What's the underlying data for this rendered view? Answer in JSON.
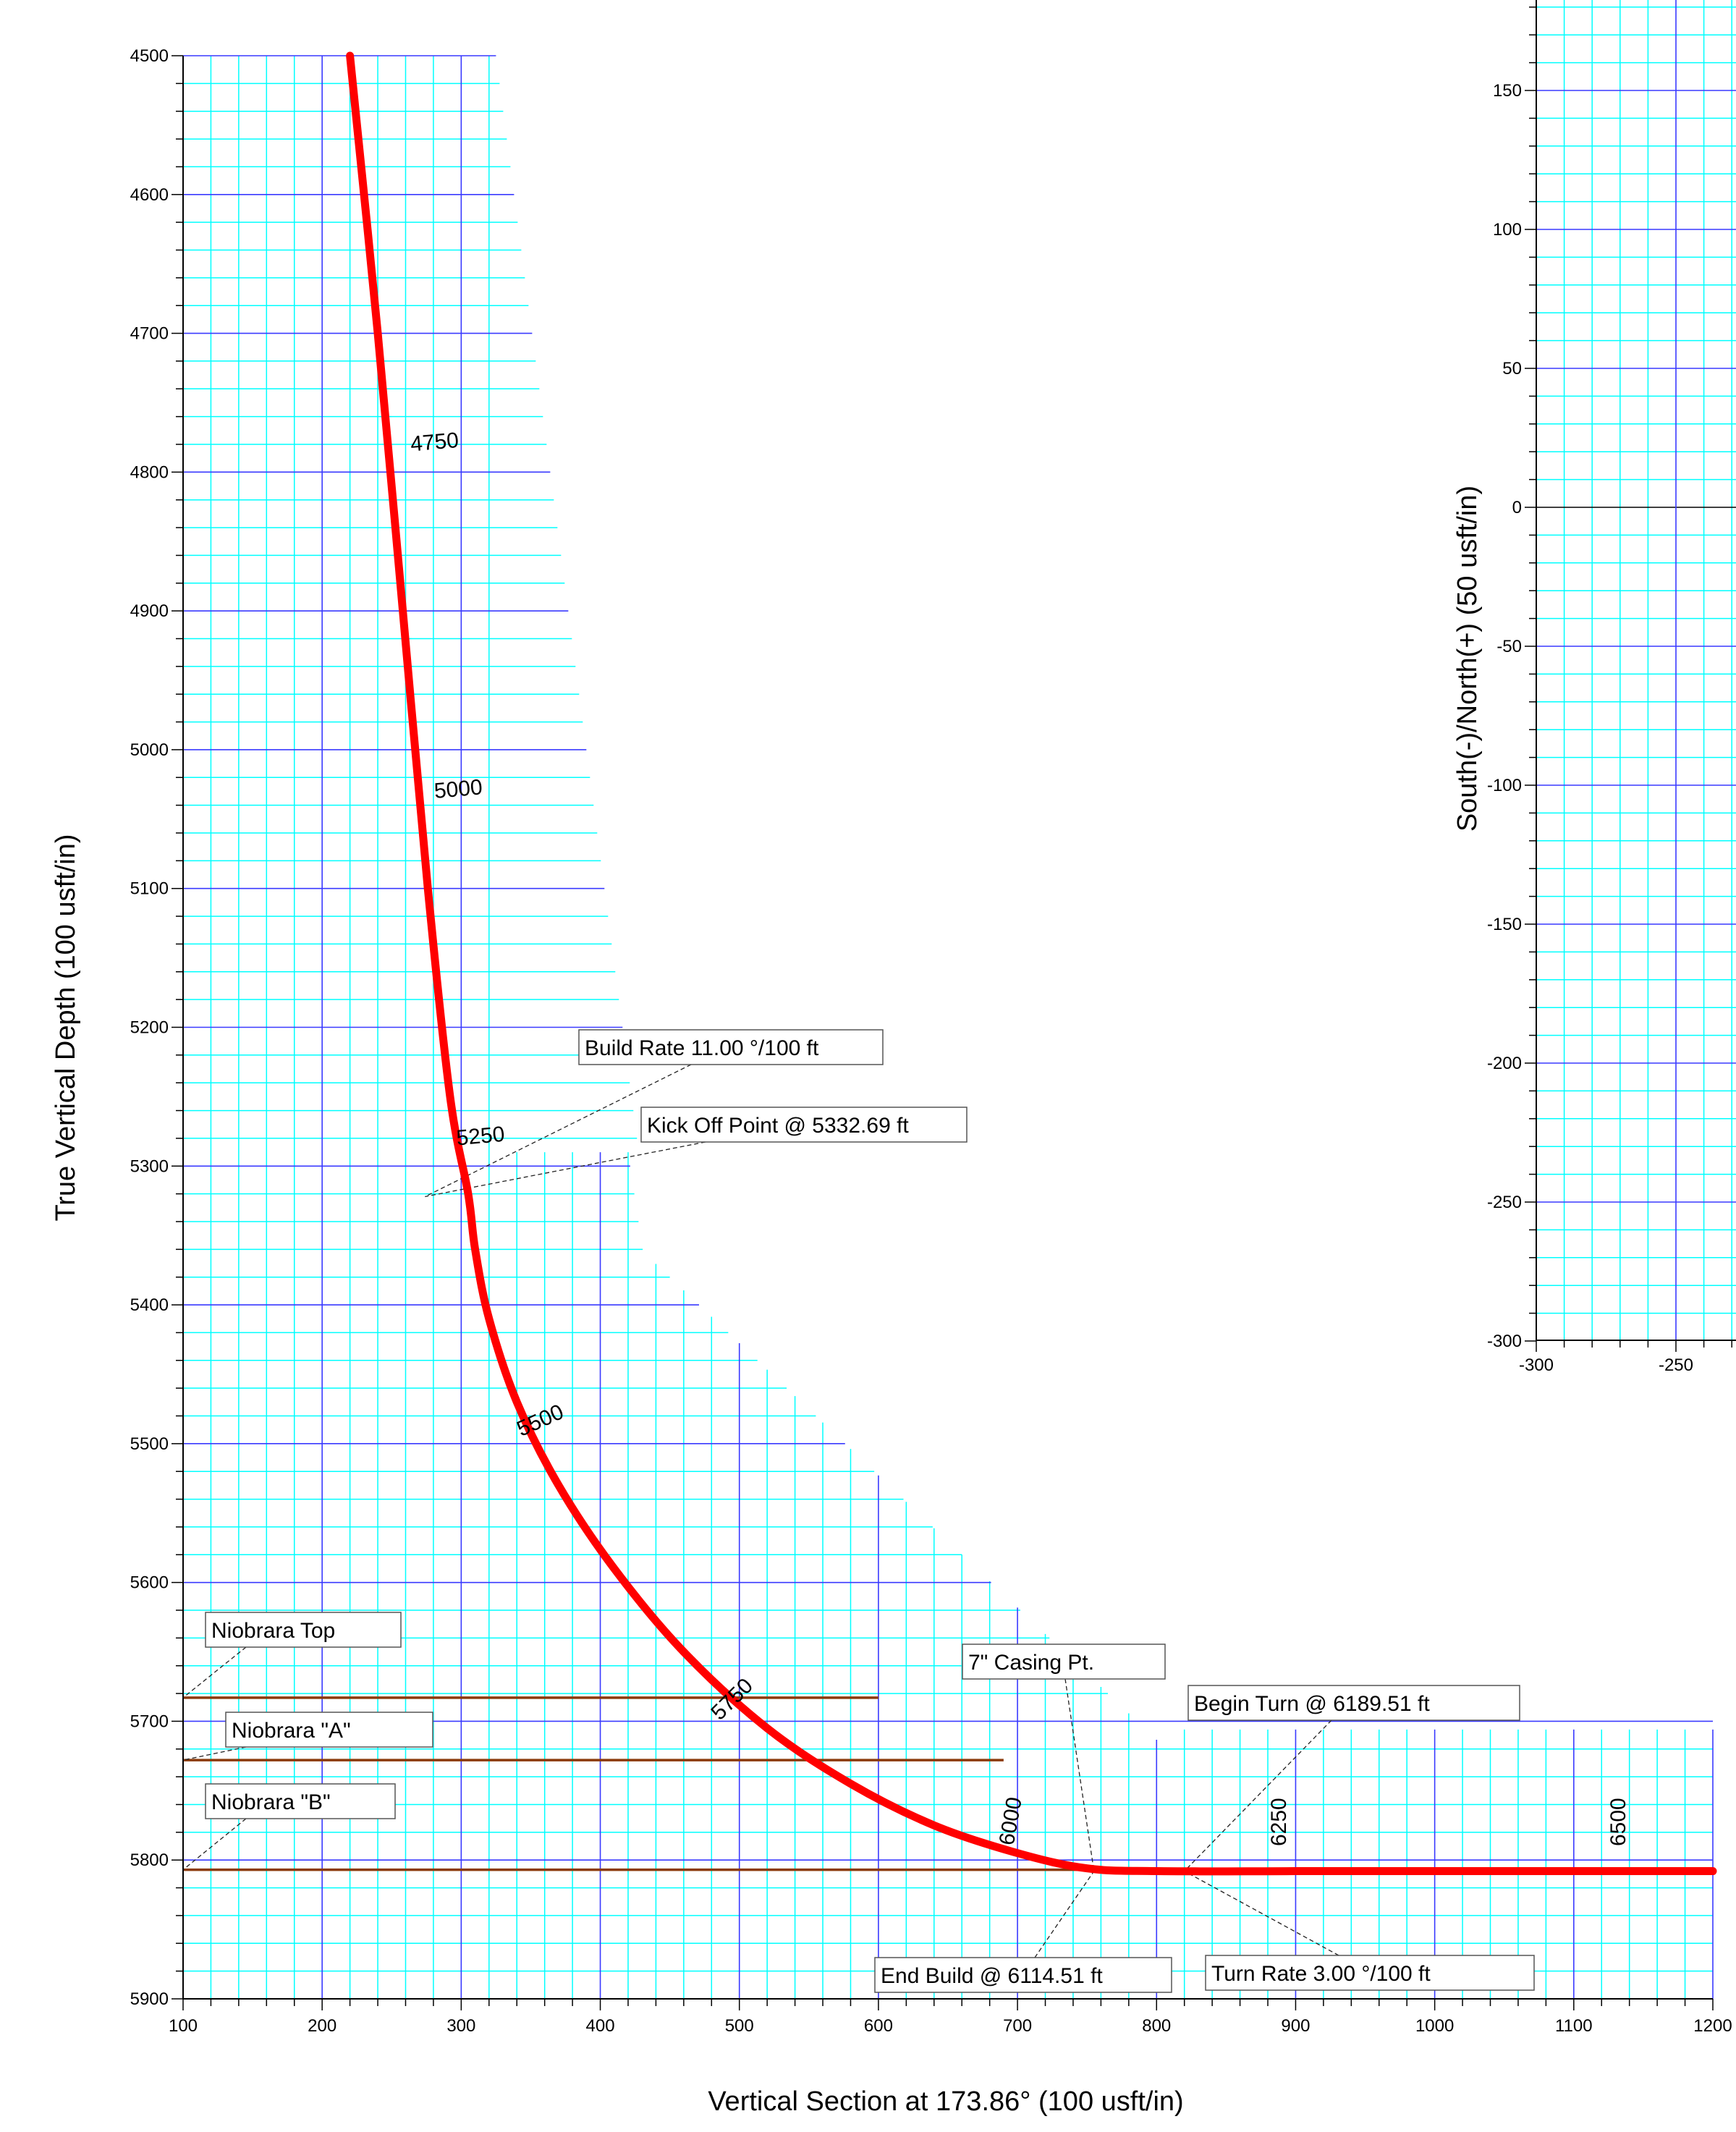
{
  "main_chart": {
    "xlabel": "Vertical Section at 173.86° (100 usft/in)",
    "ylabel": "True Vertical Depth (100 usft/in)",
    "x_ticks": [
      "100",
      "200",
      "300",
      "400",
      "500",
      "600",
      "700",
      "800",
      "900",
      "1000",
      "1100",
      "1200"
    ],
    "y_ticks": [
      "4500",
      "4600",
      "4700",
      "4800",
      "4900",
      "5000",
      "5100",
      "5200",
      "5300",
      "5400",
      "5500",
      "5600",
      "5700",
      "5800",
      "5900"
    ],
    "md_labels": [
      "4750",
      "5000",
      "5250",
      "5500",
      "5750",
      "6000",
      "6250",
      "6500"
    ],
    "annotations": [
      {
        "text": "Build Rate 11.00 °/100 ft"
      },
      {
        "text": "Kick Off Point @ 5332.69 ft"
      },
      {
        "text": "Niobrara Top"
      },
      {
        "text": "Niobrara \"A\""
      },
      {
        "text": "Niobrara \"B\""
      },
      {
        "text": "7\" Casing Pt."
      },
      {
        "text": "Begin Turn @ 6189.51 ft"
      },
      {
        "text": "End Build @ 6114.51 ft"
      },
      {
        "text": "Turn Rate 3.00 °/100 ft"
      }
    ]
  },
  "inset_chart": {
    "ylabel": "South(-)/North(+) (50 usft/in)",
    "x_ticks": [
      "-300",
      "-250"
    ],
    "y_ticks": [
      "150",
      "100",
      "50",
      "0",
      "-50",
      "-100",
      "-150",
      "-200",
      "-250",
      "-300"
    ]
  },
  "colors": {
    "well_path": "#ff0000",
    "major_grid": "#3a3aff",
    "minor_grid": "#00ffff",
    "formation_line": "#8b3a0a",
    "zero_line": "#000000"
  },
  "chart_data": [
    {
      "type": "line",
      "title": "",
      "xlabel": "Vertical Section at 173.86° (100 usft/in)",
      "ylabel": "True Vertical Depth (100 usft/in)",
      "xlim": [
        100,
        1200
      ],
      "ylim": [
        5900,
        4500
      ],
      "y_inverted": true,
      "grid": true,
      "series": [
        {
          "name": "",
          "points": [
            [
              220,
              4500
            ],
            [
              240,
              4700
            ],
            [
              258,
              4900
            ],
            [
              276,
              5100
            ],
            [
              292,
              5250
            ],
            [
              305,
              5320
            ],
            [
              310,
              5360
            ],
            [
              320,
              5410
            ],
            [
              340,
              5470
            ],
            [
              370,
              5530
            ],
            [
              410,
              5590
            ],
            [
              460,
              5650
            ],
            [
              520,
              5705
            ],
            [
              580,
              5745
            ],
            [
              640,
              5775
            ],
            [
              700,
              5795
            ],
            [
              750,
              5806
            ],
            [
              800,
              5808
            ],
            [
              900,
              5808
            ],
            [
              1000,
              5808
            ],
            [
              1100,
              5808
            ],
            [
              1200,
              5808
            ]
          ]
        }
      ],
      "formation_tops": [
        {
          "name": "Niobrara Top",
          "tvd": 5683,
          "x_start": 100,
          "x_end": 600
        },
        {
          "name": "Niobrara \"A\"",
          "tvd": 5728,
          "x_start": 100,
          "x_end": 690
        },
        {
          "name": "Niobrara \"B\"",
          "tvd": 5807,
          "x_start": 100,
          "x_end": 1200
        }
      ]
    },
    {
      "type": "line",
      "title": "",
      "xlabel": "",
      "ylabel": "South(-)/North(+) (50 usft/in)",
      "xlim": [
        -300,
        -200
      ],
      "ylim": [
        -300,
        150
      ],
      "grid": true,
      "series": []
    }
  ]
}
